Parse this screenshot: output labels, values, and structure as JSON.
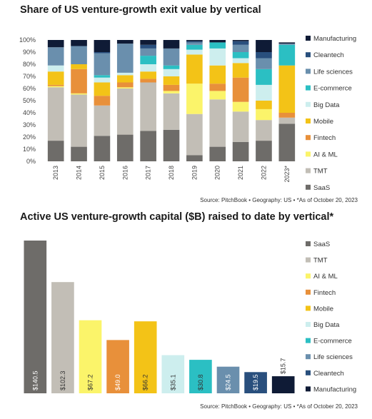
{
  "colors": {
    "SaaS": "#6e6c69",
    "TMT": "#c2beb6",
    "AI & ML": "#fbf46a",
    "Fintech": "#e8903a",
    "Mobile": "#f3c317",
    "Big Data": "#cdeeee",
    "E-commerce": "#2bbfc3",
    "Life sciences": "#6a8fad",
    "Cleantech": "#294f7d",
    "Manufacturing": "#0f1b36"
  },
  "chart_data": [
    {
      "type": "stacked-bar",
      "title": "Share of US venture-growth exit value by vertical",
      "source": "Source: PitchBook • Geography: US • *As of October 20, 2023",
      "categories": [
        "2013",
        "2014",
        "2015",
        "2016",
        "2017",
        "2018",
        "2019",
        "2020",
        "2021",
        "2022",
        "2023*"
      ],
      "y_ticks": [
        "0%",
        "10%",
        "20%",
        "30%",
        "40%",
        "50%",
        "60%",
        "70%",
        "80%",
        "90%",
        "100%"
      ],
      "ylim": [
        0,
        100
      ],
      "legend_position": "right",
      "legend_order": [
        "Manufacturing",
        "Cleantech",
        "Life sciences",
        "E-commerce",
        "Big Data",
        "Mobile",
        "Fintech",
        "AI & ML",
        "TMT",
        "SaaS"
      ],
      "series": [
        {
          "name": "SaaS",
          "values": [
            17,
            12,
            21,
            22,
            25,
            26,
            5,
            12,
            16,
            17,
            31
          ]
        },
        {
          "name": "TMT",
          "values": [
            44,
            43,
            25,
            38,
            40,
            30,
            34,
            39,
            25,
            17,
            5
          ]
        },
        {
          "name": "AI & ML",
          "values": [
            1,
            1,
            0,
            1,
            0,
            2,
            25,
            7,
            8,
            9,
            0
          ]
        },
        {
          "name": "Fintech",
          "values": [
            1,
            20,
            8,
            4,
            3,
            5,
            0,
            6,
            20,
            0,
            4
          ]
        },
        {
          "name": "Mobile",
          "values": [
            11,
            4,
            11,
            6,
            6,
            7,
            24,
            15,
            12,
            7,
            39
          ]
        },
        {
          "name": "Big Data",
          "values": [
            5,
            0,
            4,
            2,
            6,
            6,
            4,
            14,
            4,
            13,
            0
          ]
        },
        {
          "name": "E-commerce",
          "values": [
            0,
            0,
            2,
            0,
            7,
            3,
            4,
            5,
            5,
            13,
            17
          ]
        },
        {
          "name": "Life sciences",
          "values": [
            15,
            15,
            18,
            24,
            6,
            14,
            2,
            0,
            6,
            9,
            1
          ]
        },
        {
          "name": "Cleantech",
          "values": [
            0,
            0,
            1,
            0,
            3,
            0,
            1,
            0,
            3,
            5,
            0
          ]
        },
        {
          "name": "Manufacturing",
          "values": [
            6,
            5,
            10,
            3,
            4,
            7,
            1,
            2,
            1,
            10,
            1
          ]
        }
      ]
    },
    {
      "type": "bar",
      "title": "Active US venture-growth capital ($B) raised to date by vertical*",
      "source": "Source: PitchBook • Geography: US • *As of October 20, 2023",
      "categories": [
        "SaaS",
        "TMT",
        "AI & ML",
        "Fintech",
        "Mobile",
        "Big Data",
        "E-commerce",
        "Life sciences",
        "Cleantech",
        "Manufacturing"
      ],
      "values": [
        140.5,
        102.3,
        67.2,
        49.0,
        66.2,
        35.1,
        30.8,
        24.5,
        19.5,
        15.7
      ],
      "labels": [
        "$140.5",
        "$102.3",
        "$67.2",
        "$49.0",
        "$66.2",
        "$35.1",
        "$30.8",
        "$24.5",
        "$19.5",
        "$15.7"
      ],
      "legend_position": "right",
      "legend_order": [
        "SaaS",
        "TMT",
        "AI & ML",
        "Fintech",
        "Mobile",
        "Big Data",
        "E-commerce",
        "Life sciences",
        "Cleantech",
        "Manufacturing"
      ]
    }
  ]
}
